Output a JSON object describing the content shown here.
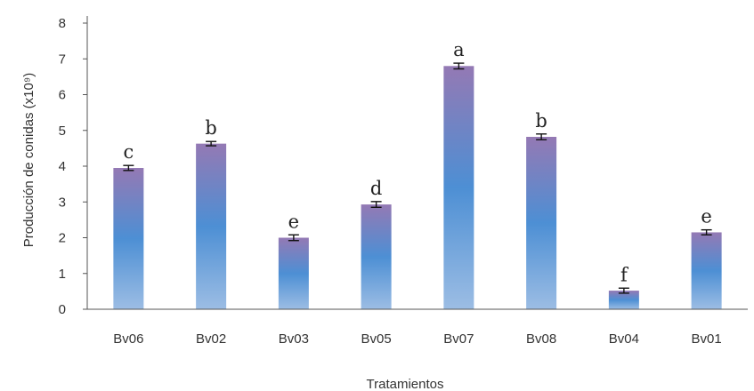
{
  "chart_data": {
    "type": "bar",
    "categories": [
      "Bv06",
      "Bv02",
      "Bv03",
      "Bv05",
      "Bv07",
      "Bv08",
      "Bv04",
      "Bv01"
    ],
    "values": [
      3.95,
      4.63,
      2.0,
      2.93,
      6.8,
      4.82,
      0.52,
      2.15
    ],
    "errors": [
      0.07,
      0.06,
      0.08,
      0.08,
      0.08,
      0.08,
      0.07,
      0.07
    ],
    "significance_letters": [
      "c",
      "b",
      "e",
      "d",
      "a",
      "b",
      "f",
      "e"
    ],
    "xlabel": "Tratamientos",
    "ylabel": "Producción de conidas (x10⁹)",
    "ylim": [
      0,
      8
    ],
    "yticks": [
      "0",
      "1",
      "2",
      "3",
      "4",
      "5",
      "6",
      "7",
      "8"
    ],
    "grid": false,
    "legend": "none",
    "colors": {
      "bar_top": "#9479b4",
      "bar_mid": "#4d8fd4",
      "bar_bottom": "#9cbde4",
      "axis": "#555555",
      "error_bar": "#111111"
    }
  }
}
